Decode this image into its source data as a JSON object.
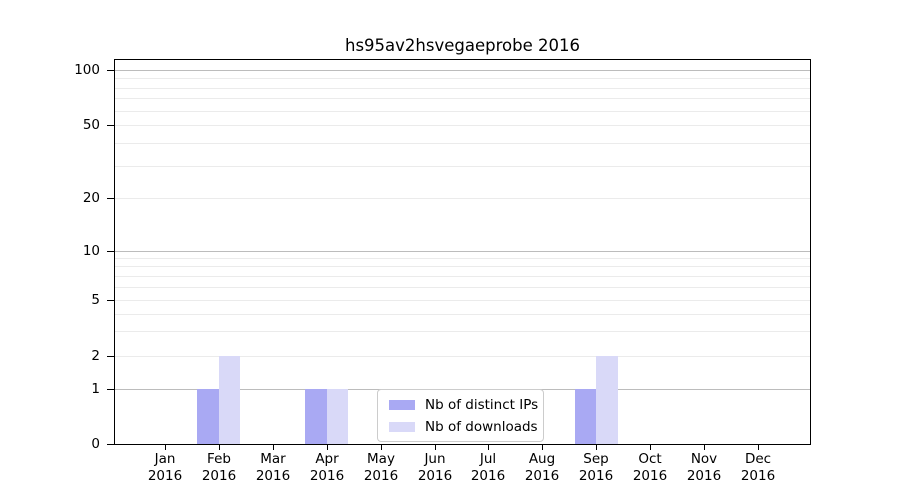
{
  "chart_data": {
    "type": "bar",
    "title": "hs95av2hsvegaeprobe 2016",
    "x_months": [
      "Jan",
      "Feb",
      "Mar",
      "Apr",
      "May",
      "Jun",
      "Jul",
      "Aug",
      "Sep",
      "Oct",
      "Nov",
      "Dec"
    ],
    "x_year": "2016",
    "series": [
      {
        "name": "Nb of distinct IPs",
        "color": "#a9a9f3",
        "values": [
          0,
          1,
          0,
          1,
          0,
          0,
          0,
          0,
          1,
          0,
          0,
          0
        ]
      },
      {
        "name": "Nb of downloads",
        "color": "#d9d9f8",
        "values": [
          0,
          2,
          0,
          1,
          0,
          0,
          0,
          0,
          2,
          0,
          0,
          0
        ]
      }
    ],
    "y_axis": {
      "scale": "symlog",
      "tick_labels": [
        0,
        1,
        2,
        5,
        10,
        20,
        50,
        100
      ],
      "major_grid_values": [
        1,
        10,
        100
      ],
      "minor_grid_values": [
        2,
        3,
        4,
        5,
        6,
        7,
        8,
        9,
        20,
        30,
        40,
        50,
        60,
        70,
        80,
        90
      ]
    },
    "grid": {
      "orientation": "horizontal",
      "major_color": "#bcbcbc",
      "minor_color": "#ebebeb"
    },
    "legend": {
      "position": "lower center"
    }
  }
}
